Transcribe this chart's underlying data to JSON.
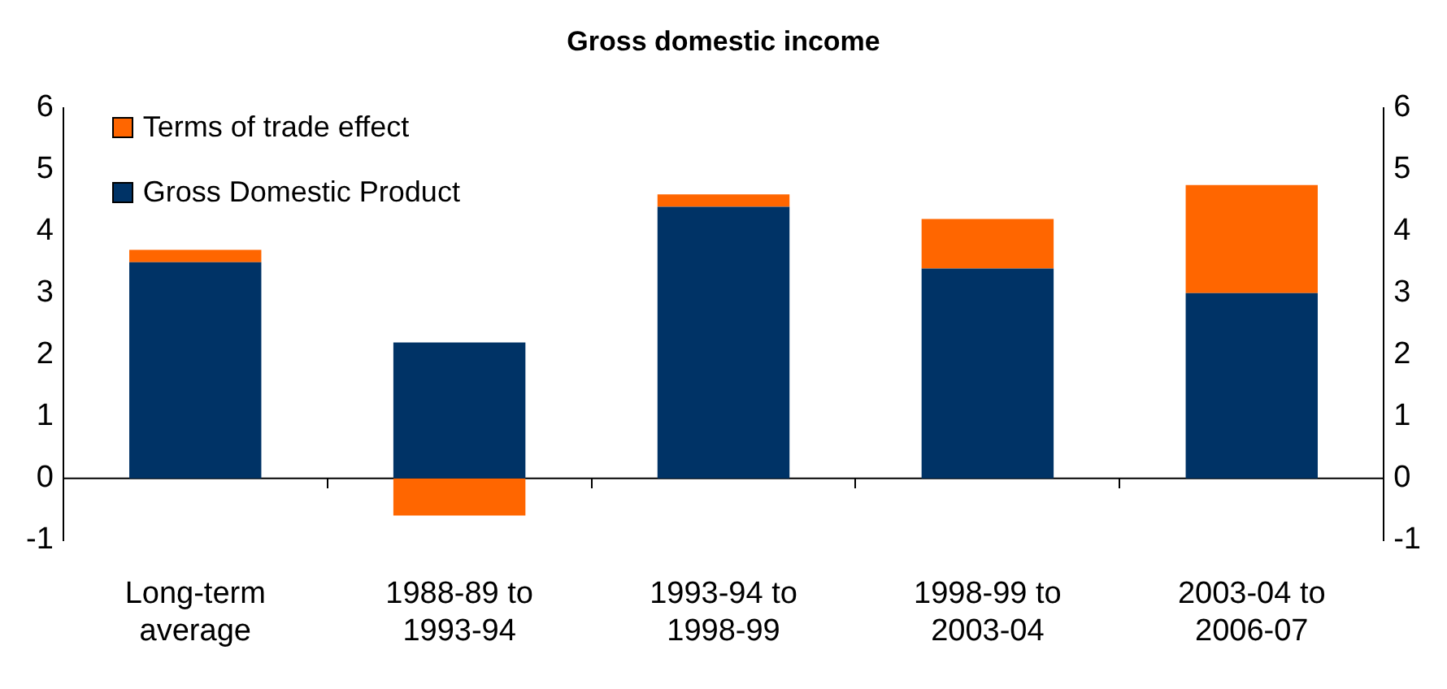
{
  "chart_data": {
    "type": "bar",
    "title": "Gross domestic income",
    "categories": [
      "Long-term average",
      "1988-89 to 1993-94",
      "1993-94 to 1998-99",
      "1998-99 to 2003-04",
      "2003-04 to 2006-07"
    ],
    "stacked": true,
    "series": [
      {
        "name": "Gross Domestic Product",
        "color": "#003366",
        "values": [
          3.5,
          2.2,
          4.4,
          3.4,
          3.0
        ]
      },
      {
        "name": "Terms of trade effect",
        "color": "#ff6600",
        "values": [
          0.2,
          -0.6,
          0.2,
          0.8,
          1.75
        ]
      }
    ],
    "ylim": [
      -1,
      6
    ],
    "yticks": [
      -1,
      0,
      1,
      2,
      3,
      4,
      5,
      6
    ],
    "y2lim": [
      -1,
      6
    ],
    "y2ticks": [
      -1,
      0,
      1,
      2,
      3,
      4,
      5,
      6
    ],
    "grid": false,
    "ref_lines": [
      {
        "axis": "y",
        "value": 0,
        "color": "#000000"
      }
    ],
    "legend": "top left"
  }
}
